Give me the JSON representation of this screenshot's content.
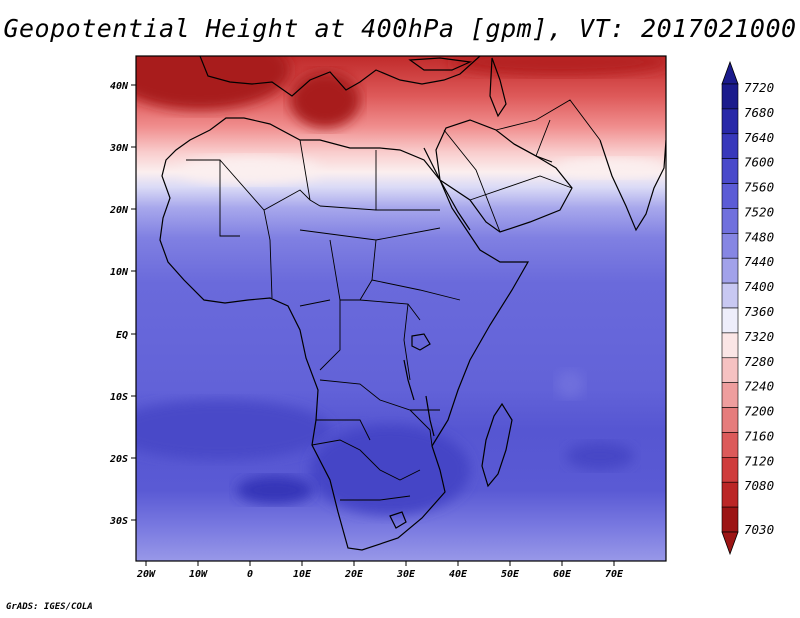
{
  "title": "Geopotential Height at 400hPa [gpm], VT: 2017021000",
  "credit": "GrADS: IGES/COLA",
  "lat_labels": [
    "40N",
    "30N",
    "20N",
    "10N",
    "EQ",
    "10S",
    "20S",
    "30S"
  ],
  "lon_labels": [
    "20W",
    "10W",
    "0",
    "10E",
    "20E",
    "30E",
    "40E",
    "50E",
    "60E",
    "70E"
  ],
  "colorbar": {
    "levels": [
      "7720",
      "7680",
      "7640",
      "7600",
      "7560",
      "7520",
      "7480",
      "7440",
      "7400",
      "7360",
      "7320",
      "7280",
      "7240",
      "7200",
      "7160",
      "7120",
      "7080",
      "7030"
    ],
    "colors": [
      "#1b1b8c",
      "#2828a8",
      "#3838bb",
      "#4a4acb",
      "#5c5cd6",
      "#7070dd",
      "#8686e3",
      "#a2a2ea",
      "#c8c8f2",
      "#eeeefb",
      "#fbe6e6",
      "#f6c2c2",
      "#ef9e9e",
      "#e67c7c",
      "#dc5a5a",
      "#cf3c3c",
      "#bb2626",
      "#9c1414"
    ]
  },
  "chart_data": {
    "type": "map",
    "variable": "Geopotential Height at 400hPa",
    "units": "gpm",
    "valid_time": "2017021000",
    "lon_range": [
      "20W",
      "80E"
    ],
    "lat_range": [
      "37S",
      "45N"
    ]
  }
}
